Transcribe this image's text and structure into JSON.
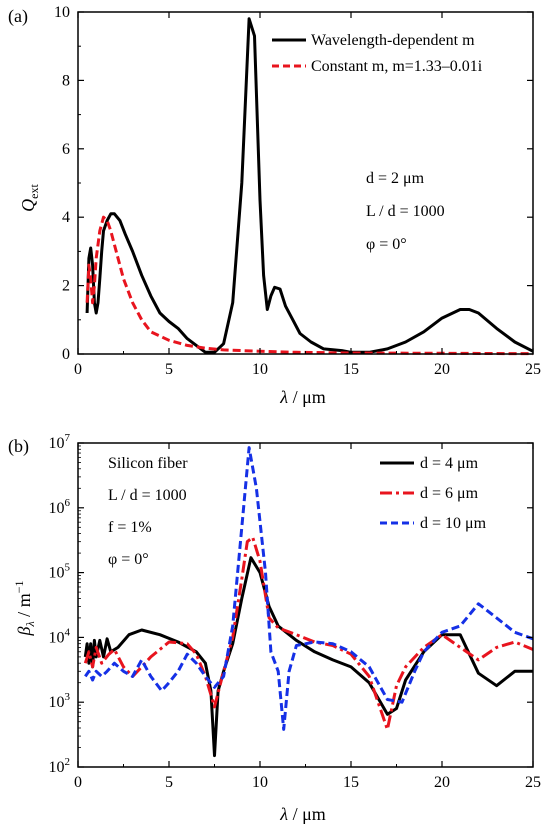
{
  "chart_data": [
    {
      "panel_label": "(a)",
      "type": "line",
      "xlabel_sym": "λ",
      "xlabel_unit": " / μm",
      "ylabel_main": "Q",
      "ylabel_sub": "ext",
      "xlim": [
        0,
        25
      ],
      "ylim": [
        0,
        10
      ],
      "xticks": [
        "0",
        "5",
        "10",
        "15",
        "20",
        "25"
      ],
      "yticks": [
        "0",
        "2",
        "4",
        "6",
        "8",
        "10"
      ],
      "legend": [
        "Wavelength-dependent m",
        "Constant m, m=1.33–0.01i"
      ],
      "annotations": [
        "d = 2 μm",
        "L / d = 1000",
        "φ = 0°"
      ],
      "series": [
        {
          "name": "Wavelength-dependent m",
          "color": "#000000",
          "style": "solid",
          "points": [
            [
              0.5,
              1.2
            ],
            [
              0.6,
              2.8
            ],
            [
              0.7,
              3.1
            ],
            [
              0.8,
              2.6
            ],
            [
              0.9,
              1.5
            ],
            [
              1.0,
              1.2
            ],
            [
              1.1,
              1.5
            ],
            [
              1.2,
              2.2
            ],
            [
              1.3,
              3.0
            ],
            [
              1.4,
              3.6
            ],
            [
              1.6,
              3.9
            ],
            [
              1.8,
              4.1
            ],
            [
              2.0,
              4.1
            ],
            [
              2.3,
              3.9
            ],
            [
              2.6,
              3.5
            ],
            [
              3.0,
              3.0
            ],
            [
              3.5,
              2.3
            ],
            [
              4.0,
              1.7
            ],
            [
              4.5,
              1.2
            ],
            [
              5.0,
              0.95
            ],
            [
              5.5,
              0.75
            ],
            [
              6.0,
              0.45
            ],
            [
              6.5,
              0.25
            ],
            [
              7.0,
              0.05
            ],
            [
              7.5,
              0.05
            ],
            [
              8.0,
              0.3
            ],
            [
              8.5,
              1.5
            ],
            [
              9.0,
              5.0
            ],
            [
              9.4,
              9.8
            ],
            [
              9.7,
              9.3
            ],
            [
              10.0,
              4.5
            ],
            [
              10.2,
              2.3
            ],
            [
              10.4,
              1.3
            ],
            [
              10.6,
              1.7
            ],
            [
              10.8,
              1.95
            ],
            [
              11.1,
              1.9
            ],
            [
              11.4,
              1.4
            ],
            [
              11.8,
              1.0
            ],
            [
              12.2,
              0.6
            ],
            [
              12.8,
              0.35
            ],
            [
              13.5,
              0.15
            ],
            [
              14.5,
              0.1
            ],
            [
              15.0,
              0.05
            ],
            [
              16.0,
              0.05
            ],
            [
              17.0,
              0.15
            ],
            [
              18.0,
              0.35
            ],
            [
              19.0,
              0.65
            ],
            [
              20.0,
              1.05
            ],
            [
              21.0,
              1.3
            ],
            [
              21.5,
              1.3
            ],
            [
              22.0,
              1.2
            ],
            [
              23.0,
              0.75
            ],
            [
              24.0,
              0.35
            ],
            [
              25.0,
              0.08
            ]
          ]
        },
        {
          "name": "Constant m, m=1.33–0.01i",
          "color": "#e8141e",
          "style": "dashed",
          "points": [
            [
              0.5,
              1.5
            ],
            [
              0.6,
              2.6
            ],
            [
              0.7,
              2.2
            ],
            [
              0.8,
              1.5
            ],
            [
              0.9,
              2.0
            ],
            [
              1.0,
              2.8
            ],
            [
              1.2,
              3.6
            ],
            [
              1.4,
              4.0
            ],
            [
              1.6,
              3.9
            ],
            [
              1.8,
              3.6
            ],
            [
              2.1,
              3.0
            ],
            [
              2.5,
              2.2
            ],
            [
              3.0,
              1.5
            ],
            [
              3.5,
              1.0
            ],
            [
              4.0,
              0.65
            ],
            [
              5.0,
              0.4
            ],
            [
              6.0,
              0.25
            ],
            [
              7.0,
              0.17
            ],
            [
              8.0,
              0.12
            ],
            [
              10.0,
              0.08
            ],
            [
              12.0,
              0.05
            ],
            [
              15.0,
              0.03
            ],
            [
              20.0,
              0.02
            ],
            [
              25.0,
              0.01
            ]
          ]
        }
      ]
    },
    {
      "panel_label": "(b)",
      "type": "line",
      "yscale": "log",
      "xlabel_sym": "λ",
      "xlabel_unit": " / μm",
      "ylabel_main": "β",
      "ylabel_sub": "λ",
      "ylabel_unit": " / m",
      "ylabel_sup": "−1",
      "xlim": [
        0,
        25
      ],
      "ylim": [
        100,
        10000000
      ],
      "xticks": [
        "0",
        "5",
        "10",
        "15",
        "20",
        "25"
      ],
      "yticks": [
        {
          "base": "10",
          "exp": "2"
        },
        {
          "base": "10",
          "exp": "3"
        },
        {
          "base": "10",
          "exp": "4"
        },
        {
          "base": "10",
          "exp": "5"
        },
        {
          "base": "10",
          "exp": "6"
        },
        {
          "base": "10",
          "exp": "7"
        }
      ],
      "legend": [
        "d = 4 μm",
        "d = 6 μm",
        "d = 10 μm"
      ],
      "annotations": [
        "Silicon fiber",
        "L / d = 1000",
        "f = 1%",
        "φ = 0°"
      ],
      "series": [
        {
          "name": "d = 4 μm",
          "color": "#000000",
          "style": "solid",
          "points": [
            [
              0.4,
              5000
            ],
            [
              0.5,
              8000
            ],
            [
              0.6,
              4000
            ],
            [
              0.7,
              8000
            ],
            [
              0.8,
              3500
            ],
            [
              0.9,
              9000
            ],
            [
              1.0,
              5000
            ],
            [
              1.2,
              9000
            ],
            [
              1.4,
              5000
            ],
            [
              1.6,
              9500
            ],
            [
              1.8,
              6000
            ],
            [
              2.2,
              7000
            ],
            [
              2.8,
              11000
            ],
            [
              3.5,
              13000
            ],
            [
              4.5,
              11000
            ],
            [
              5.5,
              8500
            ],
            [
              6.5,
              6000
            ],
            [
              7.0,
              4000
            ],
            [
              7.3,
              1500
            ],
            [
              7.5,
              150
            ],
            [
              7.7,
              1500
            ],
            [
              8.0,
              3000
            ],
            [
              8.5,
              8000
            ],
            [
              9.0,
              40000
            ],
            [
              9.5,
              170000
            ],
            [
              10.0,
              100000
            ],
            [
              10.5,
              30000
            ],
            [
              11.0,
              15000
            ],
            [
              12.0,
              9000
            ],
            [
              13.0,
              6000
            ],
            [
              14.0,
              4500
            ],
            [
              15.0,
              3500
            ],
            [
              16.0,
              2000
            ],
            [
              17.0,
              650
            ],
            [
              17.5,
              800
            ],
            [
              18.0,
              2200
            ],
            [
              19.0,
              6000
            ],
            [
              20.0,
              11000
            ],
            [
              21.0,
              11000
            ],
            [
              22.0,
              2800
            ],
            [
              23.0,
              1800
            ],
            [
              24.0,
              3000
            ],
            [
              25.0,
              3000
            ]
          ]
        },
        {
          "name": "d = 6 μm",
          "color": "#e8141e",
          "style": "dashdot",
          "points": [
            [
              0.4,
              4000
            ],
            [
              0.6,
              6000
            ],
            [
              0.8,
              3500
            ],
            [
              1.0,
              7000
            ],
            [
              1.3,
              4000
            ],
            [
              1.7,
              5500
            ],
            [
              2.0,
              6500
            ],
            [
              2.5,
              3500
            ],
            [
              3.0,
              2500
            ],
            [
              3.5,
              3500
            ],
            [
              4.0,
              5000
            ],
            [
              5.0,
              8500
            ],
            [
              6.0,
              8000
            ],
            [
              6.5,
              5500
            ],
            [
              7.0,
              2500
            ],
            [
              7.5,
              850
            ],
            [
              8.0,
              3000
            ],
            [
              8.5,
              10000
            ],
            [
              9.0,
              80000
            ],
            [
              9.3,
              300000
            ],
            [
              9.6,
              350000
            ],
            [
              10.0,
              150000
            ],
            [
              10.5,
              20000
            ],
            [
              11.0,
              14000
            ],
            [
              12.0,
              11000
            ],
            [
              13.0,
              8500
            ],
            [
              14.0,
              7500
            ],
            [
              15.0,
              5500
            ],
            [
              16.0,
              2500
            ],
            [
              17.0,
              380
            ],
            [
              17.5,
              1800
            ],
            [
              18.0,
              3500
            ],
            [
              19.0,
              7000
            ],
            [
              20.0,
              11000
            ],
            [
              21.0,
              7000
            ],
            [
              22.0,
              4500
            ],
            [
              23.0,
              7000
            ],
            [
              24.0,
              8500
            ],
            [
              25.0,
              6500
            ]
          ]
        },
        {
          "name": "d = 10 μm",
          "color": "#1530e6",
          "style": "dashed",
          "points": [
            [
              0.4,
              2500
            ],
            [
              0.6,
              3000
            ],
            [
              0.8,
              2200
            ],
            [
              1.0,
              3000
            ],
            [
              1.3,
              2500
            ],
            [
              1.6,
              3000
            ],
            [
              2.0,
              4000
            ],
            [
              2.5,
              3000
            ],
            [
              3.0,
              2500
            ],
            [
              3.5,
              4500
            ],
            [
              4.0,
              2500
            ],
            [
              4.6,
              1500
            ],
            [
              5.0,
              2000
            ],
            [
              5.5,
              3000
            ],
            [
              6.0,
              5500
            ],
            [
              6.5,
              4000
            ],
            [
              7.0,
              2500
            ],
            [
              7.5,
              1700
            ],
            [
              8.0,
              2500
            ],
            [
              8.5,
              15000
            ],
            [
              9.0,
              500000
            ],
            [
              9.4,
              8500000
            ],
            [
              9.8,
              2000000
            ],
            [
              10.3,
              100000
            ],
            [
              10.6,
              6000
            ],
            [
              11.0,
              3000
            ],
            [
              11.3,
              380
            ],
            [
              11.6,
              3000
            ],
            [
              12.0,
              7500
            ],
            [
              13.0,
              8500
            ],
            [
              14.0,
              8000
            ],
            [
              15.0,
              6000
            ],
            [
              16.0,
              3500
            ],
            [
              17.0,
              1100
            ],
            [
              17.8,
              1000
            ],
            [
              18.5,
              3000
            ],
            [
              19.0,
              6000
            ],
            [
              20.0,
              12000
            ],
            [
              21.0,
              15000
            ],
            [
              22.0,
              33000
            ],
            [
              23.0,
              20000
            ],
            [
              24.0,
              12000
            ],
            [
              25.0,
              9500
            ]
          ]
        }
      ]
    }
  ]
}
